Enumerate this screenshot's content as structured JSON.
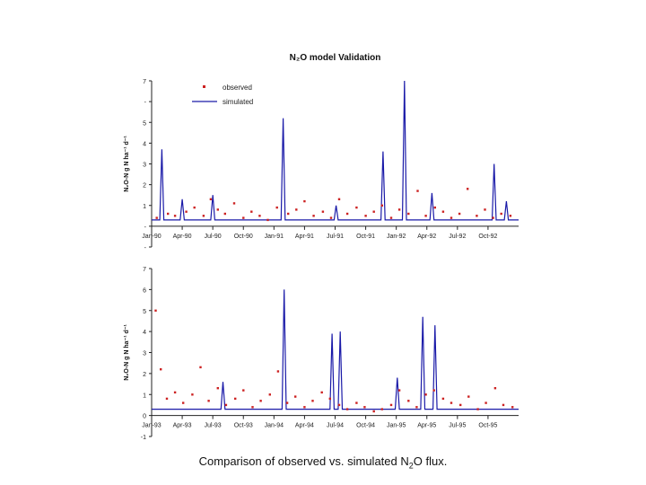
{
  "page": {
    "caption_pre": "Comparison of observed vs. simulated N",
    "caption_sub": "2",
    "caption_post": "O flux."
  },
  "chart_data": [
    {
      "type": "line",
      "title": "N₂O model Validation",
      "ylabel": "N₂O-N g N ha⁻¹ d⁻¹",
      "xlabel": "",
      "ylim": [
        -1,
        7
      ],
      "yticks": [
        -1,
        0,
        1,
        2,
        3,
        4,
        5,
        6,
        7
      ],
      "ytick_labels": [
        "-",
        "-",
        "1",
        "2",
        "3",
        "4",
        "5",
        "-",
        "7"
      ],
      "x_range": [
        0,
        36
      ],
      "xticks": [
        0,
        3,
        6,
        9,
        12,
        15,
        18,
        21,
        24,
        27,
        30,
        33
      ],
      "categories": [
        "Jan-90",
        "Apr-90",
        "Jul-90",
        "Oct-90",
        "Jan-91",
        "Apr-91",
        "Jul-91",
        "Oct-91",
        "Jan-92",
        "Apr-92",
        "Jul-92",
        "Oct-92"
      ],
      "legend": {
        "position": "top-left",
        "entries": [
          "observed",
          "simulated"
        ]
      },
      "grid": false,
      "colors": {
        "observed": "#cc2222",
        "simulated": "#1a1aa8"
      },
      "series": [
        {
          "name": "simulated",
          "x": [
            0,
            0.8,
            1,
            1.2,
            2.8,
            3,
            3.2,
            5.8,
            6,
            6.2,
            12.7,
            12.9,
            13.1,
            17.9,
            18.1,
            18.3,
            22.5,
            22.7,
            22.9,
            24.6,
            24.8,
            25,
            27.3,
            27.5,
            27.7,
            33.4,
            33.6,
            33.8,
            34.6,
            34.8,
            35,
            36
          ],
          "y": [
            0.3,
            0.3,
            3.7,
            0.3,
            0.3,
            1.3,
            0.3,
            0.3,
            1.5,
            0.3,
            0.3,
            5.2,
            0.3,
            0.3,
            1.0,
            0.3,
            0.3,
            3.6,
            0.3,
            0.3,
            7.0,
            0.3,
            0.3,
            1.6,
            0.3,
            0.3,
            3.0,
            0.3,
            0.3,
            1.2,
            0.3,
            0.3
          ]
        },
        {
          "name": "observed",
          "x": [
            0.5,
            1.6,
            2.3,
            3.4,
            4.2,
            5.1,
            5.8,
            6.5,
            7.2,
            8.1,
            9.0,
            9.8,
            10.6,
            11.4,
            12.3,
            13.4,
            14.2,
            15.0,
            15.9,
            16.8,
            17.6,
            18.4,
            19.2,
            20.1,
            21.0,
            21.8,
            22.6,
            23.5,
            24.3,
            25.2,
            26.1,
            26.9,
            27.8,
            28.6,
            29.4,
            30.2,
            31.0,
            31.9,
            32.7,
            33.5,
            34.3,
            35.2
          ],
          "y": [
            0.4,
            0.6,
            0.5,
            0.7,
            0.9,
            0.5,
            1.3,
            0.8,
            0.6,
            1.1,
            0.4,
            0.7,
            0.5,
            0.3,
            0.9,
            0.6,
            0.8,
            1.2,
            0.5,
            0.7,
            0.4,
            1.3,
            0.6,
            0.9,
            0.5,
            0.7,
            1.0,
            0.4,
            0.8,
            0.6,
            1.7,
            0.5,
            0.9,
            0.7,
            0.4,
            0.6,
            1.8,
            0.5,
            0.8,
            0.4,
            0.6,
            0.5
          ]
        }
      ]
    },
    {
      "type": "line",
      "title": "",
      "ylabel": "N₂O-N g N ha⁻¹ d⁻¹",
      "xlabel": "",
      "ylim": [
        -1,
        7
      ],
      "yticks": [
        -1,
        0,
        1,
        2,
        3,
        4,
        5,
        6,
        7
      ],
      "ytick_labels": [
        "-1",
        "0",
        "1",
        "2",
        "3",
        "4",
        "5",
        "6",
        "7"
      ],
      "x_range": [
        0,
        36
      ],
      "xticks": [
        0,
        3,
        6,
        9,
        12,
        15,
        18,
        21,
        24,
        27,
        30,
        33
      ],
      "categories": [
        "Jan-93",
        "Apr-93",
        "Jul-93",
        "Oct-93",
        "Jan-94",
        "Apr-94",
        "Jul-94",
        "Oct-94",
        "Jan-95",
        "Apr-95",
        "Jul-95",
        "Oct-95"
      ],
      "grid": false,
      "colors": {
        "observed": "#cc2222",
        "simulated": "#1a1aa8"
      },
      "series": [
        {
          "name": "simulated",
          "x": [
            0,
            6.8,
            7,
            7.2,
            12.8,
            13,
            13.2,
            17.5,
            17.7,
            17.9,
            18.3,
            18.5,
            18.7,
            23.9,
            24.1,
            24.3,
            26.4,
            26.6,
            26.8,
            27.6,
            27.8,
            28,
            36
          ],
          "y": [
            0.3,
            0.3,
            1.6,
            0.3,
            0.3,
            6.0,
            0.3,
            0.3,
            3.9,
            0.3,
            0.3,
            4.0,
            0.3,
            0.3,
            1.8,
            0.3,
            0.3,
            4.7,
            0.3,
            0.3,
            4.3,
            0.3,
            0.3
          ]
        },
        {
          "name": "observed",
          "x": [
            0.4,
            0.9,
            1.5,
            2.3,
            3.1,
            4.0,
            4.8,
            5.6,
            6.5,
            7.3,
            8.2,
            9.0,
            9.9,
            10.7,
            11.6,
            12.4,
            13.3,
            14.1,
            15.0,
            15.8,
            16.7,
            17.5,
            18.4,
            19.2,
            20.1,
            20.9,
            21.8,
            22.6,
            23.5,
            24.3,
            25.2,
            26.0,
            26.9,
            27.7,
            28.6,
            29.4,
            30.3,
            31.1,
            32.0,
            32.8,
            33.7,
            34.5,
            35.4
          ],
          "y": [
            5.0,
            2.2,
            0.8,
            1.1,
            0.6,
            1.0,
            2.3,
            0.7,
            1.3,
            0.5,
            0.8,
            1.2,
            0.4,
            0.7,
            1.0,
            2.1,
            0.6,
            0.9,
            0.4,
            0.7,
            1.1,
            0.8,
            0.5,
            0.3,
            0.6,
            0.4,
            0.2,
            0.3,
            0.5,
            1.2,
            0.7,
            0.4,
            1.0,
            1.2,
            0.8,
            0.6,
            0.5,
            0.9,
            0.3,
            0.6,
            1.3,
            0.5,
            0.4
          ]
        }
      ]
    }
  ]
}
